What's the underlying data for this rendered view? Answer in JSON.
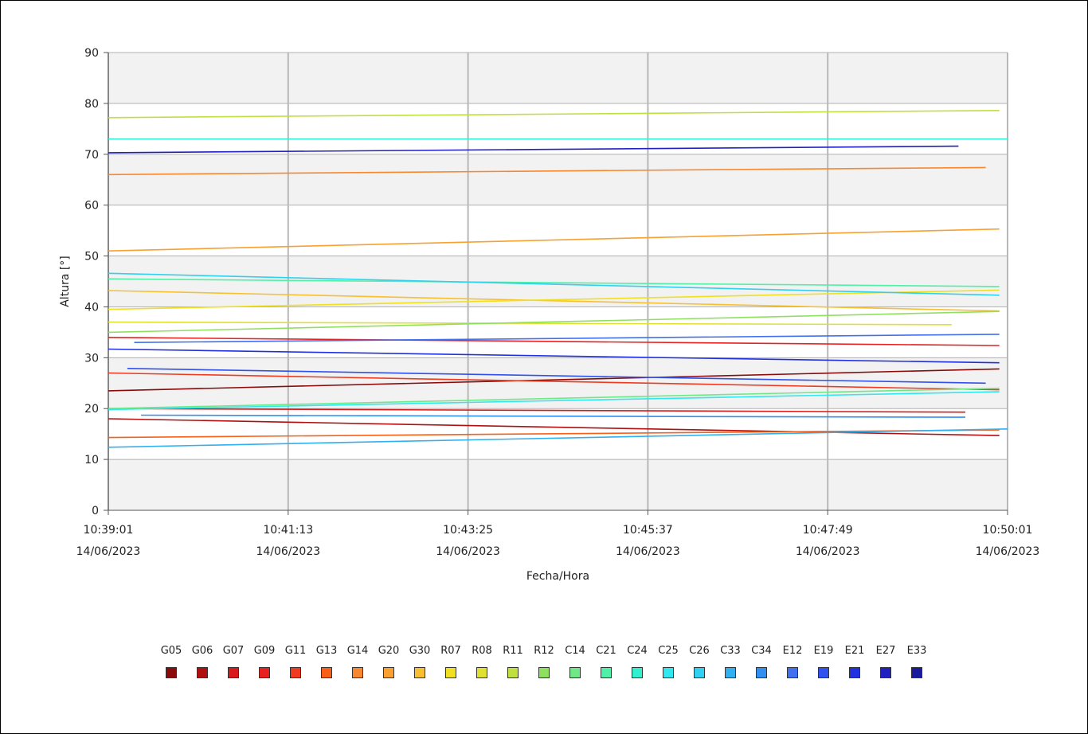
{
  "chart_data": {
    "type": "line",
    "xlabel": "Fecha/Hora",
    "ylabel": "Altura [°]",
    "ylim": [
      0,
      90
    ],
    "yticks": [
      "0",
      "10",
      "20",
      "30",
      "40",
      "50",
      "60",
      "70",
      "80",
      "90"
    ],
    "xlim": [
      "10:39:01",
      "10:50:01"
    ],
    "xticks": [
      {
        "time": "10:39:01",
        "date": "14/06/2023"
      },
      {
        "time": "10:41:13",
        "date": "14/06/2023"
      },
      {
        "time": "10:43:25",
        "date": "14/06/2023"
      },
      {
        "time": "10:45:37",
        "date": "14/06/2023"
      },
      {
        "time": "10:47:49",
        "date": "14/06/2023"
      },
      {
        "time": "10:50:01",
        "date": "14/06/2023"
      }
    ],
    "grid": true,
    "legend_position": "bottom",
    "series": [
      {
        "name": "G05",
        "color": "#8b0a0a",
        "x": [
          "10:39:01",
          "10:49:55"
        ],
        "y": [
          23.5,
          27.8
        ]
      },
      {
        "name": "G06",
        "color": "#b00f0f",
        "x": [
          "10:39:01",
          "10:49:55"
        ],
        "y": [
          18.0,
          14.7
        ]
      },
      {
        "name": "G07",
        "color": "#d81a1a",
        "x": [
          "10:39:01",
          "10:49:30"
        ],
        "y": [
          20.0,
          19.3
        ]
      },
      {
        "name": "G09",
        "color": "#e82020",
        "x": [
          "10:39:01",
          "10:49:55"
        ],
        "y": [
          34.0,
          32.4
        ]
      },
      {
        "name": "G11",
        "color": "#f03a20",
        "x": [
          "10:39:01",
          "10:49:55"
        ],
        "y": [
          27.0,
          23.7
        ]
      },
      {
        "name": "G13",
        "color": "#f86018",
        "x": [
          "10:39:01",
          "10:49:55"
        ],
        "y": [
          14.3,
          15.8
        ]
      },
      {
        "name": "G14",
        "color": "#f88830",
        "x": [
          "10:39:01",
          "10:49:45"
        ],
        "y": [
          66.0,
          67.4
        ]
      },
      {
        "name": "G20",
        "color": "#f8a030",
        "x": [
          "10:39:01",
          "10:49:55"
        ],
        "y": [
          51.0,
          55.3
        ]
      },
      {
        "name": "G30",
        "color": "#f8c030",
        "x": [
          "10:39:01",
          "10:49:55"
        ],
        "y": [
          43.2,
          39.2
        ]
      },
      {
        "name": "R07",
        "color": "#f0e020",
        "x": [
          "10:39:01",
          "10:49:55"
        ],
        "y": [
          39.5,
          43.3
        ]
      },
      {
        "name": "R08",
        "color": "#e0e030",
        "x": [
          "10:39:01",
          "10:49:20"
        ],
        "y": [
          37.0,
          36.5
        ]
      },
      {
        "name": "R11",
        "color": "#c0e040",
        "x": [
          "10:39:01",
          "10:49:55"
        ],
        "y": [
          77.2,
          78.6
        ]
      },
      {
        "name": "R12",
        "color": "#90e060",
        "x": [
          "10:39:01",
          "10:49:55"
        ],
        "y": [
          35.0,
          39.1
        ]
      },
      {
        "name": "C14",
        "color": "#70e888",
        "x": [
          "10:39:01",
          "10:49:55"
        ],
        "y": [
          20.0,
          24.0
        ]
      },
      {
        "name": "C21",
        "color": "#50f0a8",
        "x": [
          "10:39:01",
          "10:49:55"
        ],
        "y": [
          45.5,
          44.0
        ]
      },
      {
        "name": "C24",
        "color": "#30f0d0",
        "x": [
          "10:39:01",
          "10:50:01"
        ],
        "y": [
          73.0,
          73.0
        ]
      },
      {
        "name": "C25",
        "color": "#30e8f0",
        "x": [
          "10:39:01",
          "10:49:55"
        ],
        "y": [
          19.8,
          23.3
        ]
      },
      {
        "name": "C26",
        "color": "#30d0f0",
        "x": [
          "10:39:01",
          "10:49:55"
        ],
        "y": [
          46.6,
          42.3
        ]
      },
      {
        "name": "C33",
        "color": "#30b0f0",
        "x": [
          "10:39:01",
          "10:50:01"
        ],
        "y": [
          12.4,
          16.0
        ]
      },
      {
        "name": "C34",
        "color": "#3090f0",
        "x": [
          "10:39:25",
          "10:49:30"
        ],
        "y": [
          18.7,
          18.3
        ]
      },
      {
        "name": "E12",
        "color": "#4070f0",
        "x": [
          "10:39:20",
          "10:49:55"
        ],
        "y": [
          33.0,
          34.6
        ]
      },
      {
        "name": "E19",
        "color": "#3050f0",
        "x": [
          "10:39:15",
          "10:49:45"
        ],
        "y": [
          27.9,
          25.0
        ]
      },
      {
        "name": "E21",
        "color": "#2030e0",
        "x": [
          "10:39:01",
          "10:49:55"
        ],
        "y": [
          31.7,
          29.0
        ]
      },
      {
        "name": "E27",
        "color": "#2020c0",
        "x": [
          "10:39:01",
          "10:49:25"
        ],
        "y": [
          70.3,
          71.6
        ]
      },
      {
        "name": "E33",
        "color": "#1a1aa0",
        "x": [],
        "y": []
      }
    ]
  }
}
